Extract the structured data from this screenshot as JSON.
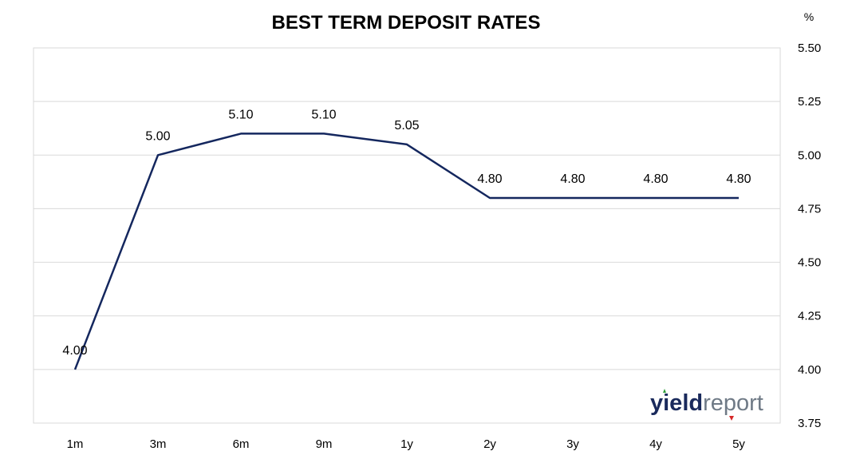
{
  "chart_data": {
    "type": "line",
    "title": "BEST TERM DEPOSIT RATES",
    "y_unit": "%",
    "categories": [
      "1m",
      "3m",
      "6m",
      "9m",
      "1y",
      "2y",
      "3y",
      "4y",
      "5y"
    ],
    "values": [
      4.0,
      5.0,
      5.1,
      5.1,
      5.05,
      4.8,
      4.8,
      4.8,
      4.8
    ],
    "data_labels": [
      "4.00",
      "5.00",
      "5.10",
      "5.10",
      "5.05",
      "4.80",
      "4.80",
      "4.80",
      "4.80"
    ],
    "ylim": [
      3.75,
      5.5
    ],
    "yticks": [
      "3.75",
      "4.00",
      "4.25",
      "4.50",
      "4.75",
      "5.00",
      "5.25",
      "5.50"
    ],
    "y_axis_position": "right",
    "grid": true,
    "legend": "none",
    "colors": {
      "line": "#14275e",
      "grid": "#d9d9d9",
      "border": "#d9d9d9"
    }
  },
  "logo": {
    "part1": "yield",
    "part2": "report",
    "colors": {
      "part1": "#1a2a5c",
      "part2": "#6f7a86",
      "up_arrow": "#2e9e3a",
      "down_arrow": "#d62828"
    }
  }
}
